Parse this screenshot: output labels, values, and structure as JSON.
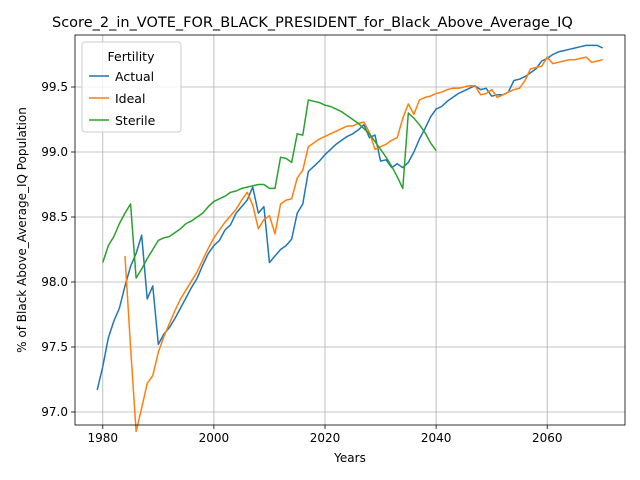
{
  "chart_data": {
    "type": "line",
    "title": "Score_2_in_VOTE_FOR_BLACK_PRESIDENT_for_Black_Above_Average_IQ",
    "xlabel": "Years",
    "ylabel": "% of Black Above_Average_IQ Population",
    "xlim": [
      1975,
      2074
    ],
    "ylim": [
      96.9,
      99.9
    ],
    "xticks": [
      1980,
      2000,
      2020,
      2040,
      2060
    ],
    "yticks": [
      97.0,
      97.5,
      98.0,
      98.5,
      99.0,
      99.5
    ],
    "xtick_labels": [
      "1980",
      "2000",
      "2020",
      "2040",
      "2060"
    ],
    "ytick_labels": [
      "97.0",
      "97.5",
      "98.0",
      "98.5",
      "99.0",
      "99.5"
    ],
    "grid": true,
    "legend": {
      "title": "Fertility",
      "position": "top-left"
    },
    "series": [
      {
        "name": "Actual",
        "color": "#1f77b4",
        "points": [
          [
            1979,
            97.17
          ],
          [
            1980,
            97.35
          ],
          [
            1981,
            97.57
          ],
          [
            1982,
            97.7
          ],
          [
            1983,
            97.8
          ],
          [
            1984,
            97.97
          ],
          [
            1985,
            98.12
          ],
          [
            1986,
            98.22
          ],
          [
            1987,
            98.36
          ],
          [
            1988,
            97.87
          ],
          [
            1989,
            97.97
          ],
          [
            1990,
            97.52
          ],
          [
            1991,
            97.6
          ],
          [
            1992,
            97.65
          ],
          [
            1993,
            97.72
          ],
          [
            1994,
            97.8
          ],
          [
            1995,
            97.88
          ],
          [
            1996,
            97.96
          ],
          [
            1997,
            98.03
          ],
          [
            1998,
            98.13
          ],
          [
            1999,
            98.22
          ],
          [
            2000,
            98.28
          ],
          [
            2001,
            98.32
          ],
          [
            2002,
            98.4
          ],
          [
            2003,
            98.44
          ],
          [
            2004,
            98.53
          ],
          [
            2005,
            98.58
          ],
          [
            2006,
            98.63
          ],
          [
            2007,
            98.73
          ],
          [
            2008,
            98.53
          ],
          [
            2009,
            98.58
          ],
          [
            2010,
            98.15
          ],
          [
            2011,
            98.2
          ],
          [
            2012,
            98.25
          ],
          [
            2013,
            98.28
          ],
          [
            2014,
            98.33
          ],
          [
            2015,
            98.53
          ],
          [
            2016,
            98.6
          ],
          [
            2017,
            98.85
          ],
          [
            2018,
            98.89
          ],
          [
            2019,
            98.93
          ],
          [
            2020,
            98.98
          ],
          [
            2021,
            99.02
          ],
          [
            2022,
            99.06
          ],
          [
            2023,
            99.09
          ],
          [
            2024,
            99.12
          ],
          [
            2025,
            99.14
          ],
          [
            2026,
            99.17
          ],
          [
            2027,
            99.21
          ],
          [
            2028,
            99.11
          ],
          [
            2029,
            99.13
          ],
          [
            2030,
            98.93
          ],
          [
            2031,
            98.94
          ],
          [
            2032,
            98.88
          ],
          [
            2033,
            98.91
          ],
          [
            2034,
            98.88
          ],
          [
            2035,
            98.92
          ],
          [
            2036,
            99.0
          ],
          [
            2037,
            99.1
          ],
          [
            2038,
            99.18
          ],
          [
            2039,
            99.27
          ],
          [
            2040,
            99.33
          ],
          [
            2041,
            99.35
          ],
          [
            2042,
            99.39
          ],
          [
            2043,
            99.42
          ],
          [
            2044,
            99.45
          ],
          [
            2045,
            99.47
          ],
          [
            2046,
            99.49
          ],
          [
            2047,
            99.51
          ],
          [
            2048,
            99.48
          ],
          [
            2049,
            99.49
          ],
          [
            2050,
            99.43
          ],
          [
            2051,
            99.44
          ],
          [
            2052,
            99.44
          ],
          [
            2053,
            99.46
          ],
          [
            2054,
            99.55
          ],
          [
            2055,
            99.56
          ],
          [
            2056,
            99.58
          ],
          [
            2057,
            99.61
          ],
          [
            2058,
            99.64
          ],
          [
            2059,
            99.7
          ],
          [
            2060,
            99.72
          ],
          [
            2061,
            99.75
          ],
          [
            2062,
            99.77
          ],
          [
            2063,
            99.78
          ],
          [
            2064,
            99.79
          ],
          [
            2065,
            99.8
          ],
          [
            2066,
            99.81
          ],
          [
            2067,
            99.82
          ],
          [
            2068,
            99.82
          ],
          [
            2069,
            99.82
          ],
          [
            2070,
            99.8
          ]
        ]
      },
      {
        "name": "Ideal",
        "color": "#ff7f0e",
        "points": [
          [
            1984,
            98.2
          ],
          [
            1985,
            97.5
          ],
          [
            1986,
            96.85
          ],
          [
            1987,
            97.03
          ],
          [
            1988,
            97.22
          ],
          [
            1989,
            97.28
          ],
          [
            1990,
            97.46
          ],
          [
            1991,
            97.58
          ],
          [
            1992,
            97.68
          ],
          [
            1993,
            97.78
          ],
          [
            1994,
            97.87
          ],
          [
            1995,
            97.94
          ],
          [
            1996,
            98.01
          ],
          [
            1997,
            98.08
          ],
          [
            1998,
            98.17
          ],
          [
            1999,
            98.26
          ],
          [
            2000,
            98.34
          ],
          [
            2001,
            98.4
          ],
          [
            2002,
            98.46
          ],
          [
            2003,
            98.51
          ],
          [
            2004,
            98.56
          ],
          [
            2005,
            98.63
          ],
          [
            2006,
            98.69
          ],
          [
            2007,
            98.59
          ],
          [
            2008,
            98.41
          ],
          [
            2009,
            98.48
          ],
          [
            2010,
            98.51
          ],
          [
            2011,
            98.37
          ],
          [
            2012,
            98.6
          ],
          [
            2013,
            98.63
          ],
          [
            2014,
            98.64
          ],
          [
            2015,
            98.8
          ],
          [
            2016,
            98.86
          ],
          [
            2017,
            99.04
          ],
          [
            2018,
            99.07
          ],
          [
            2019,
            99.1
          ],
          [
            2020,
            99.12
          ],
          [
            2021,
            99.14
          ],
          [
            2022,
            99.16
          ],
          [
            2023,
            99.18
          ],
          [
            2024,
            99.2
          ],
          [
            2025,
            99.2
          ],
          [
            2026,
            99.22
          ],
          [
            2027,
            99.23
          ],
          [
            2028,
            99.15
          ],
          [
            2029,
            99.02
          ],
          [
            2030,
            99.04
          ],
          [
            2031,
            99.06
          ],
          [
            2032,
            99.09
          ],
          [
            2033,
            99.11
          ],
          [
            2034,
            99.26
          ],
          [
            2035,
            99.37
          ],
          [
            2036,
            99.29
          ],
          [
            2037,
            99.4
          ],
          [
            2038,
            99.42
          ],
          [
            2039,
            99.43
          ],
          [
            2040,
            99.45
          ],
          [
            2041,
            99.46
          ],
          [
            2042,
            99.48
          ],
          [
            2043,
            99.49
          ],
          [
            2044,
            99.49
          ],
          [
            2045,
            99.5
          ],
          [
            2046,
            99.51
          ],
          [
            2047,
            99.51
          ],
          [
            2048,
            99.44
          ],
          [
            2049,
            99.45
          ],
          [
            2050,
            99.48
          ],
          [
            2051,
            99.42
          ],
          [
            2052,
            99.44
          ],
          [
            2053,
            99.46
          ],
          [
            2054,
            99.48
          ],
          [
            2055,
            99.49
          ],
          [
            2056,
            99.55
          ],
          [
            2057,
            99.64
          ],
          [
            2058,
            99.65
          ],
          [
            2059,
            99.66
          ],
          [
            2060,
            99.73
          ],
          [
            2061,
            99.68
          ],
          [
            2062,
            99.69
          ],
          [
            2063,
            99.7
          ],
          [
            2064,
            99.71
          ],
          [
            2065,
            99.71
          ],
          [
            2066,
            99.72
          ],
          [
            2067,
            99.73
          ],
          [
            2068,
            99.69
          ],
          [
            2069,
            99.7
          ],
          [
            2070,
            99.71
          ]
        ]
      },
      {
        "name": "Sterile",
        "color": "#2ca02c",
        "points": [
          [
            1980,
            98.15
          ],
          [
            1981,
            98.28
          ],
          [
            1982,
            98.35
          ],
          [
            1983,
            98.45
          ],
          [
            1984,
            98.53
          ],
          [
            1985,
            98.6
          ],
          [
            1986,
            98.03
          ],
          [
            1987,
            98.1
          ],
          [
            1988,
            98.18
          ],
          [
            1989,
            98.25
          ],
          [
            1990,
            98.32
          ],
          [
            1991,
            98.34
          ],
          [
            1992,
            98.35
          ],
          [
            1993,
            98.38
          ],
          [
            1994,
            98.41
          ],
          [
            1995,
            98.45
          ],
          [
            1996,
            98.47
          ],
          [
            1997,
            98.5
          ],
          [
            1998,
            98.53
          ],
          [
            1999,
            98.58
          ],
          [
            2000,
            98.62
          ],
          [
            2001,
            98.64
          ],
          [
            2002,
            98.66
          ],
          [
            2003,
            98.69
          ],
          [
            2004,
            98.7
          ],
          [
            2005,
            98.72
          ],
          [
            2006,
            98.73
          ],
          [
            2007,
            98.74
          ],
          [
            2008,
            98.75
          ],
          [
            2009,
            98.75
          ],
          [
            2010,
            98.72
          ],
          [
            2011,
            98.72
          ],
          [
            2012,
            98.96
          ],
          [
            2013,
            98.95
          ],
          [
            2014,
            98.92
          ],
          [
            2015,
            99.14
          ],
          [
            2016,
            99.13
          ],
          [
            2017,
            99.4
          ],
          [
            2018,
            99.39
          ],
          [
            2019,
            99.38
          ],
          [
            2020,
            99.36
          ],
          [
            2021,
            99.35
          ],
          [
            2022,
            99.33
          ],
          [
            2023,
            99.31
          ],
          [
            2024,
            99.28
          ],
          [
            2025,
            99.25
          ],
          [
            2026,
            99.22
          ],
          [
            2027,
            99.18
          ],
          [
            2028,
            99.14
          ],
          [
            2029,
            99.08
          ],
          [
            2030,
            99.02
          ],
          [
            2031,
            98.96
          ],
          [
            2032,
            98.89
          ],
          [
            2033,
            98.81
          ],
          [
            2034,
            98.72
          ],
          [
            2035,
            99.3
          ],
          [
            2036,
            99.26
          ],
          [
            2037,
            99.21
          ],
          [
            2038,
            99.15
          ],
          [
            2039,
            99.07
          ],
          [
            2040,
            99.01
          ]
        ]
      }
    ]
  }
}
